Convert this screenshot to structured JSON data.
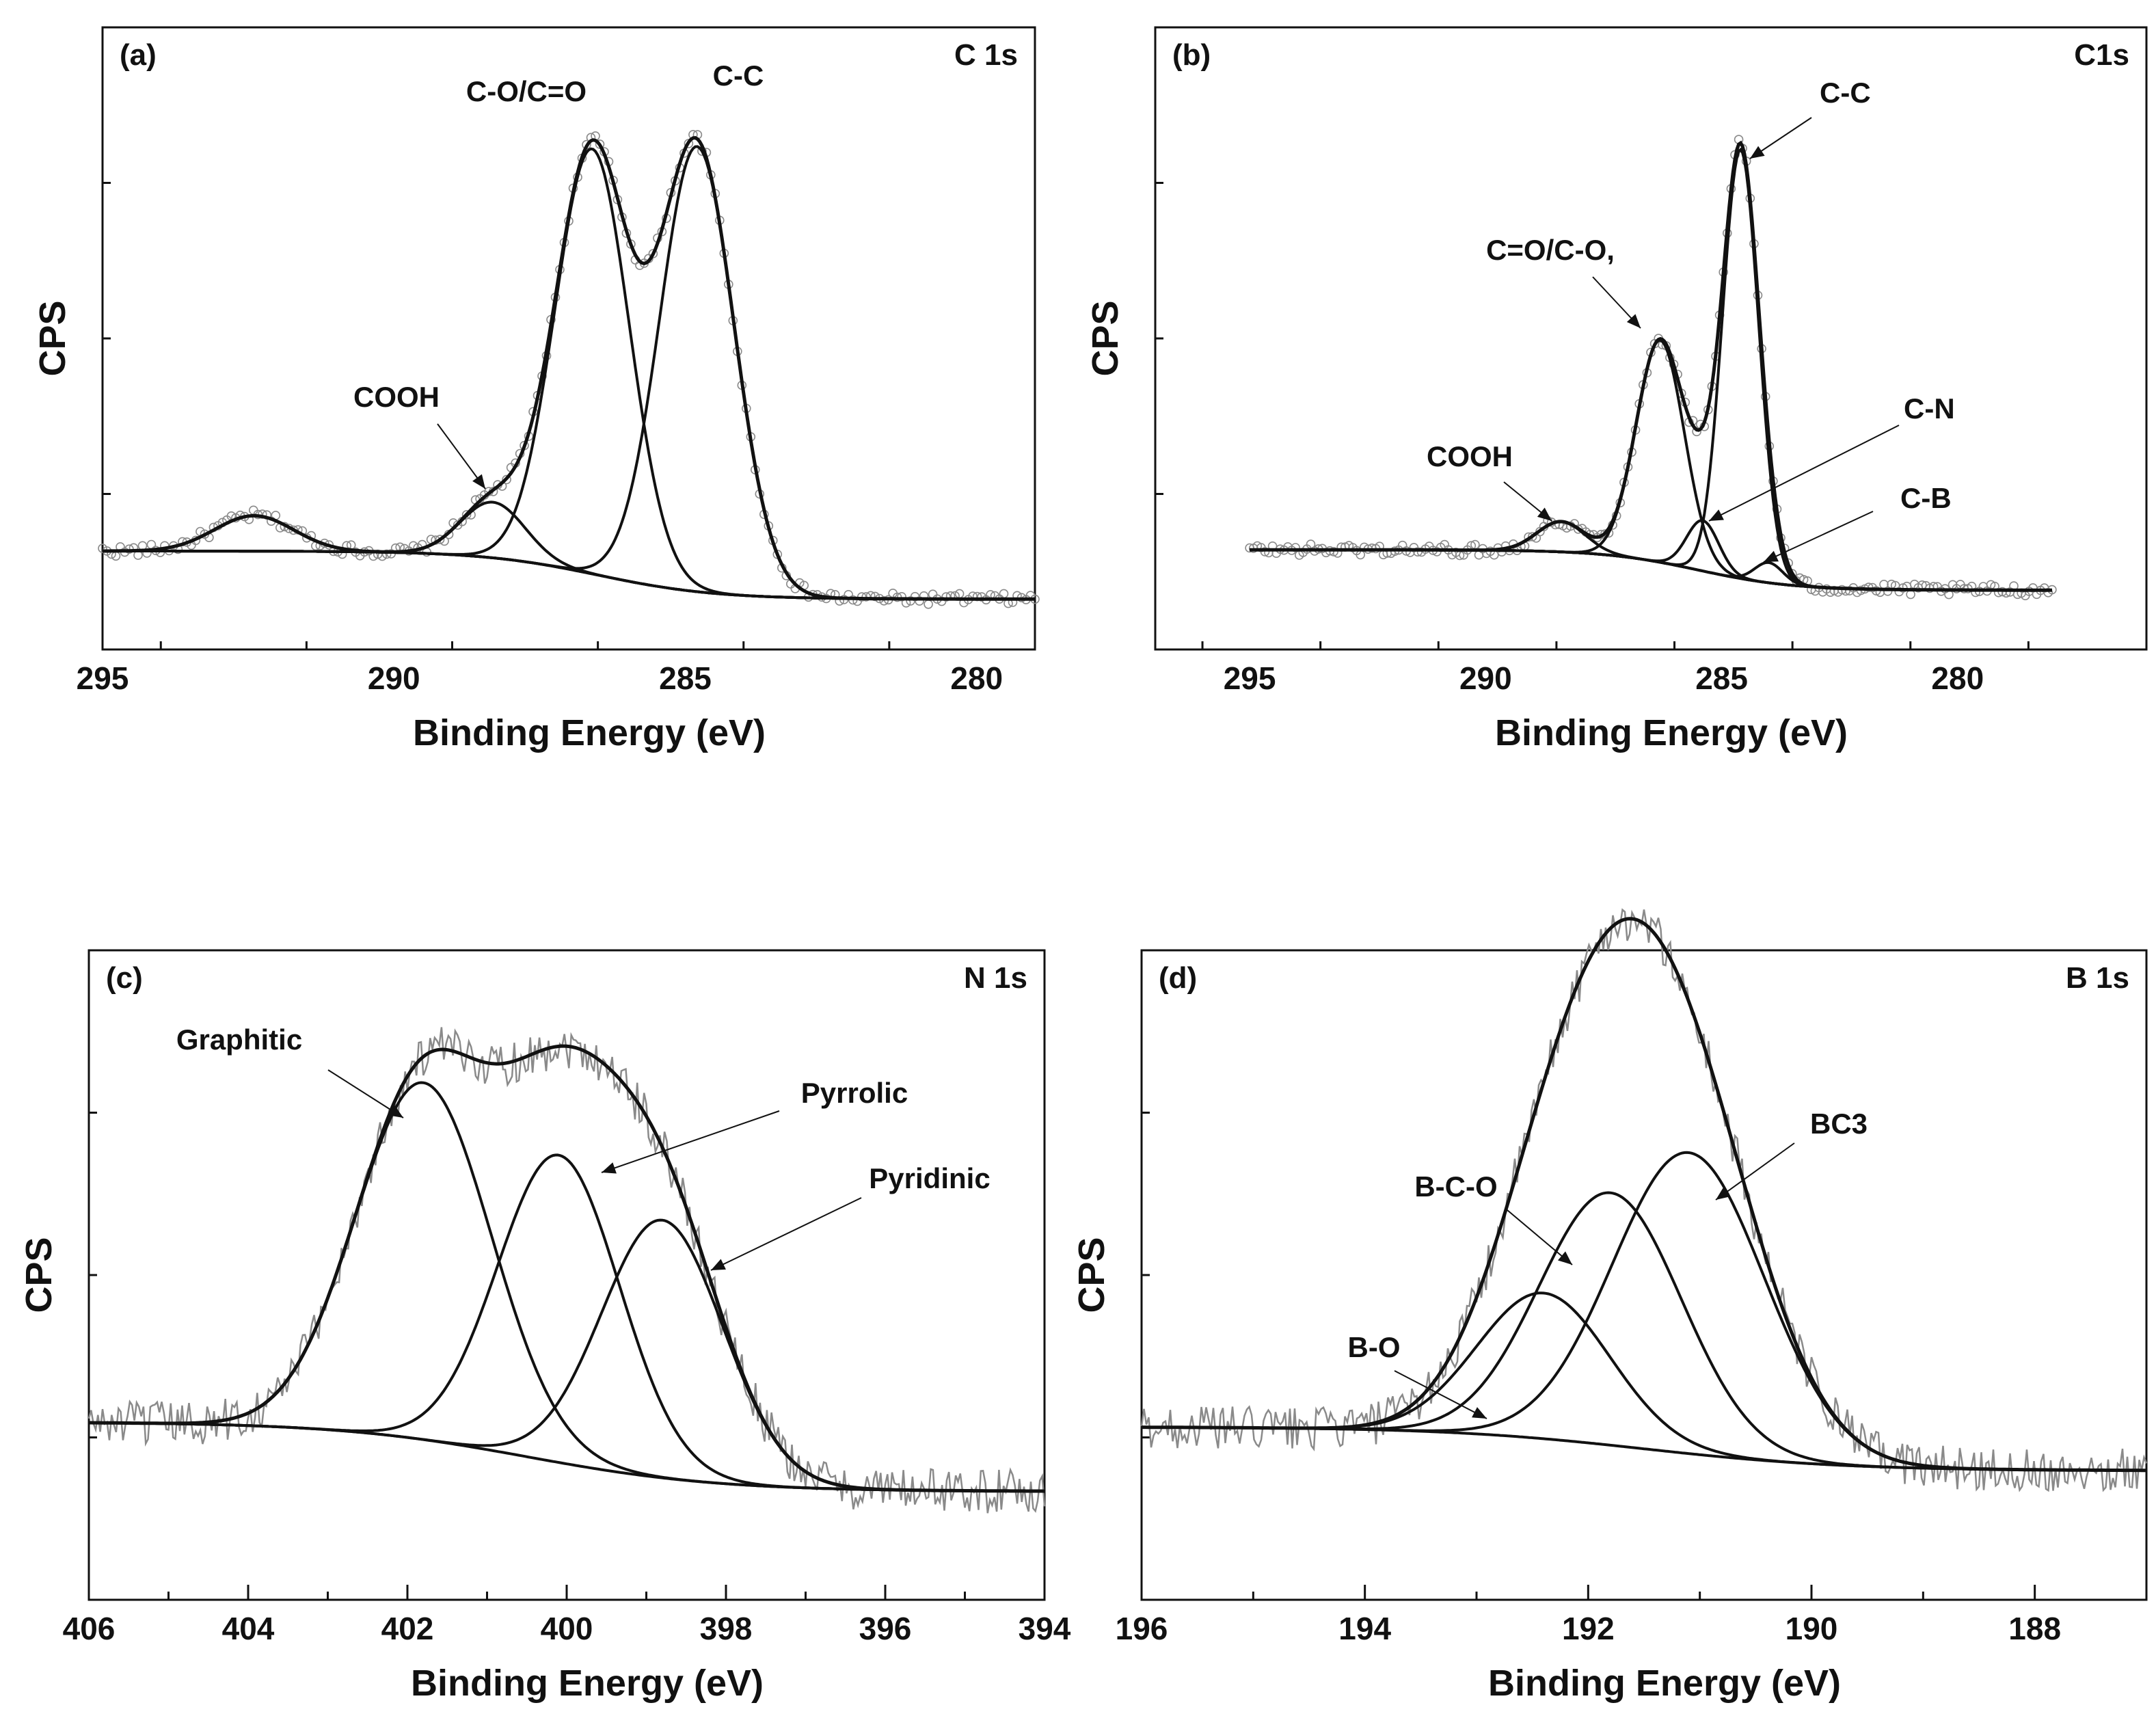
{
  "figure": {
    "colors": {
      "fit": "#111111",
      "raw": "#8a8a8a",
      "axis": "#111111"
    }
  },
  "chart_data": [
    {
      "type": "line",
      "panel": "(a)",
      "title": "C 1s",
      "xlabel": "Binding Energy (eV)",
      "ylabel": "CPS",
      "xlim": [
        295,
        279
      ],
      "xticks": [
        295,
        290,
        285,
        280
      ],
      "ylim": [
        0,
        100
      ],
      "grid": false,
      "raw_style": "circles",
      "background": {
        "left": 10,
        "right": 0.5,
        "mid": 286.5,
        "width": 1.0
      },
      "components": [
        {
          "name": "C-C",
          "center": 284.8,
          "height": 88,
          "fwhm": 1.5,
          "label": "C-C"
        },
        {
          "name": "C-O/C=O",
          "center": 286.6,
          "height": 84,
          "fwhm": 1.5,
          "label": "C-O/C=O"
        },
        {
          "name": "COOH",
          "center": 288.3,
          "height": 11,
          "fwhm": 1.3,
          "label": "COOH"
        },
        {
          "name": "satellite",
          "center": 292.4,
          "height": 7,
          "fwhm": 1.6,
          "label": ""
        }
      ]
    },
    {
      "type": "line",
      "panel": "(b)",
      "title": "C1s",
      "xlabel": "Binding Energy (eV)",
      "ylabel": "CPS",
      "xlim": [
        297,
        276
      ],
      "xticks": [
        295,
        290,
        285,
        280
      ],
      "ylim": [
        0,
        100
      ],
      "data_range": [
        295,
        278
      ],
      "grid": false,
      "raw_style": "circles",
      "background": {
        "left": 10,
        "right": 2,
        "mid": 285.5,
        "width": 1.0
      },
      "components": [
        {
          "name": "C-C",
          "center": 284.6,
          "height": 85,
          "fwhm": 0.9,
          "label": "C-C"
        },
        {
          "name": "C=O/C-O,",
          "center": 286.3,
          "height": 44,
          "fwhm": 1.2,
          "label": "C=O/C-O,"
        },
        {
          "name": "C-N",
          "center": 285.4,
          "height": 10,
          "fwhm": 0.8,
          "label": "C-N"
        },
        {
          "name": "COOH",
          "center": 288.4,
          "height": 6,
          "fwhm": 1.2,
          "label": "COOH"
        },
        {
          "name": "C-B",
          "center": 284.0,
          "height": 4,
          "fwhm": 0.7,
          "label": "C-B"
        }
      ]
    },
    {
      "type": "line",
      "panel": "(c)",
      "title": "N 1s",
      "xlabel": "Binding Energy (eV)",
      "ylabel": "CPS",
      "xlim": [
        406,
        394
      ],
      "xticks": [
        406,
        404,
        402,
        400,
        398,
        396,
        394
      ],
      "ylim": [
        0,
        100
      ],
      "grid": false,
      "raw_style": "noisy-line",
      "background": {
        "left": 20,
        "right": 6,
        "mid": 400.5,
        "width": 1.2
      },
      "components": [
        {
          "name": "Graphitic",
          "center": 401.8,
          "height": 72,
          "fwhm": 2.0,
          "label": "Graphitic"
        },
        {
          "name": "Pyrrolic",
          "center": 400.1,
          "height": 62,
          "fwhm": 1.8,
          "label": "Pyrrolic"
        },
        {
          "name": "Pyridinic",
          "center": 398.8,
          "height": 52,
          "fwhm": 1.8,
          "label": "Pyridinic"
        }
      ]
    },
    {
      "type": "line",
      "panel": "(d)",
      "title": "B 1s",
      "xlabel": "Binding Energy (eV)",
      "ylabel": "CPS",
      "xlim": [
        196,
        187
      ],
      "xticks": [
        196,
        194,
        192,
        190,
        188
      ],
      "ylim": [
        0,
        100
      ],
      "grid": false,
      "raw_style": "noisy-line",
      "background": {
        "left": 18,
        "right": 9,
        "mid": 191.5,
        "width": 0.9
      },
      "components": [
        {
          "name": "BC3",
          "center": 191.1,
          "height": 62,
          "fwhm": 1.6,
          "label": "BC3"
        },
        {
          "name": "B-C-O",
          "center": 191.8,
          "height": 52,
          "fwhm": 1.5,
          "label": "B-C-O"
        },
        {
          "name": "B-O",
          "center": 192.4,
          "height": 30,
          "fwhm": 1.4,
          "label": "B-O"
        }
      ]
    }
  ]
}
